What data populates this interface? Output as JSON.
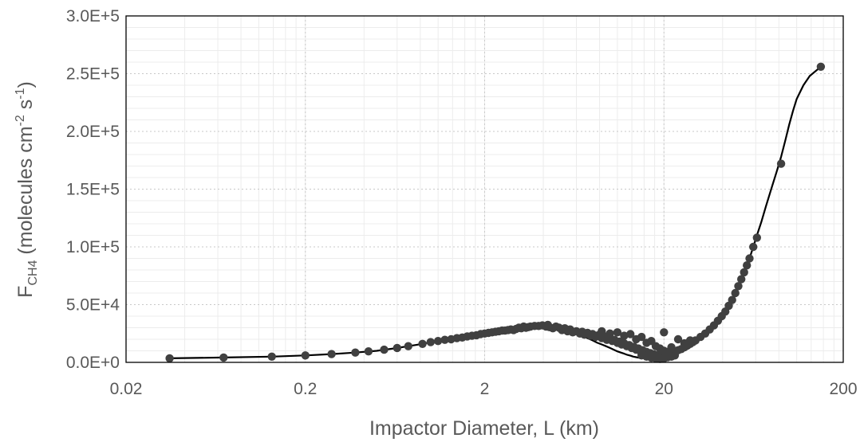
{
  "chart_data": {
    "type": "scatter",
    "xlabel": "Impactor Diameter, L (km)",
    "ylabel": {
      "main": "F",
      "sub": "CH4",
      "pre": " (molecules cm",
      "sup1": "-2",
      "mid": " s",
      "sup2": "-1",
      "post": ")"
    },
    "xscale": "log",
    "xlim": [
      0.02,
      200
    ],
    "ylim": [
      0,
      300000
    ],
    "xticks": [
      0.02,
      0.2,
      2,
      20,
      200
    ],
    "xtick_labels": [
      "0.02",
      "0.2",
      "2",
      "20",
      "200"
    ],
    "yticks": [
      0,
      50000,
      100000,
      150000,
      200000,
      250000,
      300000
    ],
    "ytick_labels": [
      "0.0E+0",
      "5.0E+4",
      "1.0E+5",
      "1.5E+5",
      "2.0E+5",
      "2.5E+5",
      "3.0E+5"
    ],
    "grid": true,
    "legend": "none",
    "series": [
      {
        "marker_color": "#404040",
        "line_color": "#000000",
        "x": [
          0.035,
          0.07,
          0.13,
          0.2,
          0.28,
          0.38,
          0.5,
          0.62,
          0.75,
          0.9,
          1.0,
          1.15,
          1.3,
          1.45,
          1.6,
          1.75,
          1.9,
          2.0,
          2.2,
          2.4,
          2.6,
          2.8,
          3.0,
          3.2,
          3.4,
          3.6,
          3.8,
          4.0,
          4.3,
          4.6,
          5.0,
          5.4,
          5.8,
          6.2,
          6.6,
          7.0,
          7.5,
          8.0,
          8.5,
          9.0,
          9.5,
          10.0,
          10.5,
          11.0,
          11.5,
          12.0,
          12.5,
          13.0,
          13.5,
          14.0,
          14.5,
          15.0,
          15.5,
          16.0,
          16.5,
          17.0,
          17.5,
          18.0,
          18.5,
          19.0,
          19.5,
          20.0,
          21.0,
          22.0,
          23.0,
          24.0,
          25.0,
          26.0,
          27.0,
          28.0,
          29.0,
          30.0,
          32.0,
          34.0,
          36.0,
          38.0,
          40.0,
          42.0,
          44.0,
          46.0,
          48.0,
          50.0,
          52.0,
          54.0,
          56.0,
          58.0,
          60.0,
          63.0,
          66.0,
          70.0,
          74.0,
          80.0,
          85.0,
          90.0,
          95.0,
          100.0,
          105.0,
          110.0,
          120.0,
          130.0,
          150.0
        ],
        "y": [
          3500,
          4200,
          5000,
          6000,
          7200,
          8500,
          10000,
          12000,
          14000,
          16000,
          17500,
          19000,
          20500,
          21500,
          22500,
          23500,
          24500,
          25000,
          26000,
          27000,
          27500,
          28000,
          29000,
          29500,
          30000,
          30500,
          31000,
          31500,
          32000,
          31500,
          31000,
          29500,
          28000,
          26500,
          25000,
          23000,
          21000,
          19000,
          17000,
          15500,
          14000,
          12500,
          11000,
          9500,
          8500,
          7500,
          6500,
          5800,
          5000,
          4500,
          4000,
          3800,
          3600,
          3500,
          3500,
          3600,
          3800,
          4000,
          4300,
          4600,
          5000,
          5500,
          6500,
          7500,
          8500,
          10000,
          11500,
          13000,
          14500,
          16000,
          17500,
          19000,
          22000,
          25000,
          28500,
          32000,
          36000,
          40000,
          44000,
          49000,
          54000,
          60000,
          66000,
          72000,
          78000,
          84000,
          90000,
          100000,
          110000,
          122000,
          135000,
          152000,
          165000,
          178000,
          192000,
          206000,
          218000,
          228000,
          240000,
          248000,
          256000
        ]
      }
    ],
    "scatter_points": [
      [
        0.035,
        3500
      ],
      [
        0.07,
        4200
      ],
      [
        0.13,
        5000
      ],
      [
        0.2,
        6000
      ],
      [
        0.28,
        7200
      ],
      [
        0.38,
        8500
      ],
      [
        0.45,
        9500
      ],
      [
        0.55,
        11000
      ],
      [
        0.65,
        12500
      ],
      [
        0.75,
        14000
      ],
      [
        0.9,
        16000
      ],
      [
        1.0,
        17500
      ],
      [
        1.1,
        18500
      ],
      [
        1.2,
        19500
      ],
      [
        1.3,
        20000
      ],
      [
        1.4,
        21000
      ],
      [
        1.5,
        21500
      ],
      [
        1.6,
        22500
      ],
      [
        1.7,
        23000
      ],
      [
        1.8,
        23500
      ],
      [
        1.9,
        24500
      ],
      [
        2.0,
        25000
      ],
      [
        2.1,
        25500
      ],
      [
        2.2,
        26000
      ],
      [
        2.3,
        26500
      ],
      [
        2.4,
        27000
      ],
      [
        2.5,
        27500
      ],
      [
        2.6,
        27500
      ],
      [
        2.7,
        28000
      ],
      [
        2.8,
        28500
      ],
      [
        2.9,
        28000
      ],
      [
        3.0,
        29000
      ],
      [
        3.1,
        30000
      ],
      [
        3.2,
        29500
      ],
      [
        3.3,
        31000
      ],
      [
        3.4,
        30000
      ],
      [
        3.5,
        30500
      ],
      [
        3.6,
        31000
      ],
      [
        3.8,
        31500
      ],
      [
        4.0,
        31500
      ],
      [
        4.2,
        32000
      ],
      [
        4.4,
        31000
      ],
      [
        4.5,
        32500
      ],
      [
        4.6,
        30500
      ],
      [
        4.8,
        29500
      ],
      [
        5.0,
        31000
      ],
      [
        5.2,
        30000
      ],
      [
        5.4,
        28000
      ],
      [
        5.6,
        29500
      ],
      [
        5.8,
        27000
      ],
      [
        6.0,
        28500
      ],
      [
        6.2,
        26000
      ],
      [
        6.5,
        27000
      ],
      [
        6.8,
        25000
      ],
      [
        7.0,
        26500
      ],
      [
        7.2,
        24000
      ],
      [
        7.5,
        25500
      ],
      [
        7.8,
        23000
      ],
      [
        8.0,
        24500
      ],
      [
        8.3,
        22000
      ],
      [
        8.6,
        23500
      ],
      [
        9.0,
        21000
      ],
      [
        9.3,
        22500
      ],
      [
        9.6,
        19500
      ],
      [
        10.0,
        21000
      ],
      [
        10.3,
        18500
      ],
      [
        10.6,
        19500
      ],
      [
        11.0,
        17000
      ],
      [
        11.3,
        18000
      ],
      [
        11.6,
        15500
      ],
      [
        12.0,
        16500
      ],
      [
        12.4,
        14000
      ],
      [
        12.8,
        15000
      ],
      [
        13.2,
        12500
      ],
      [
        13.6,
        13500
      ],
      [
        14.0,
        11000
      ],
      [
        14.4,
        12000
      ],
      [
        14.8,
        9500
      ],
      [
        15.2,
        10500
      ],
      [
        15.6,
        8000
      ],
      [
        16.0,
        9000
      ],
      [
        16.4,
        7000
      ],
      [
        16.8,
        8000
      ],
      [
        17.2,
        6000
      ],
      [
        17.6,
        7000
      ],
      [
        18.0,
        5000
      ],
      [
        18.5,
        6000
      ],
      [
        19.0,
        4500
      ],
      [
        19.5,
        5500
      ],
      [
        20.0,
        26000
      ],
      [
        20.5,
        6000
      ],
      [
        21.0,
        7000
      ],
      [
        22.0,
        8000
      ],
      [
        23.0,
        9000
      ],
      [
        24.0,
        10500
      ],
      [
        25.0,
        11500
      ],
      [
        26.0,
        13000
      ],
      [
        27.0,
        14500
      ],
      [
        28.0,
        16000
      ],
      [
        29.0,
        17500
      ],
      [
        30.0,
        19000
      ],
      [
        32.0,
        22000
      ],
      [
        34.0,
        25000
      ],
      [
        36.0,
        28500
      ],
      [
        38.0,
        32000
      ],
      [
        40.0,
        36000
      ],
      [
        42.0,
        40000
      ],
      [
        44.0,
        44000
      ],
      [
        46.0,
        49000
      ],
      [
        48.0,
        54000
      ],
      [
        50.0,
        60000
      ],
      [
        52.0,
        66000
      ],
      [
        54.0,
        72000
      ],
      [
        56.0,
        78000
      ],
      [
        58.0,
        84000
      ],
      [
        60.0,
        90000
      ],
      [
        63.0,
        100000
      ],
      [
        66.0,
        108000
      ],
      [
        90.0,
        172000
      ],
      [
        150.0,
        256000
      ],
      [
        9.0,
        27000
      ],
      [
        10.0,
        25000
      ],
      [
        11.0,
        26000
      ],
      [
        12.0,
        23000
      ],
      [
        13.0,
        24500
      ],
      [
        14.0,
        20000
      ],
      [
        15.0,
        22000
      ],
      [
        16.0,
        17000
      ],
      [
        17.0,
        18500
      ],
      [
        18.0,
        14000
      ],
      [
        19.0,
        12000
      ],
      [
        20.0,
        10000
      ],
      [
        21.0,
        9000
      ],
      [
        22.0,
        13000
      ],
      [
        24.0,
        20000
      ],
      [
        26.0,
        16500
      ],
      [
        28.0,
        19000
      ],
      [
        15.0,
        6000
      ],
      [
        16.0,
        5000
      ],
      [
        17.0,
        4000
      ],
      [
        18.0,
        3500
      ],
      [
        19.0,
        3000
      ],
      [
        20.0,
        3500
      ],
      [
        21.0,
        4500
      ],
      [
        22.0,
        5000
      ],
      [
        23.0,
        6000
      ]
    ]
  }
}
